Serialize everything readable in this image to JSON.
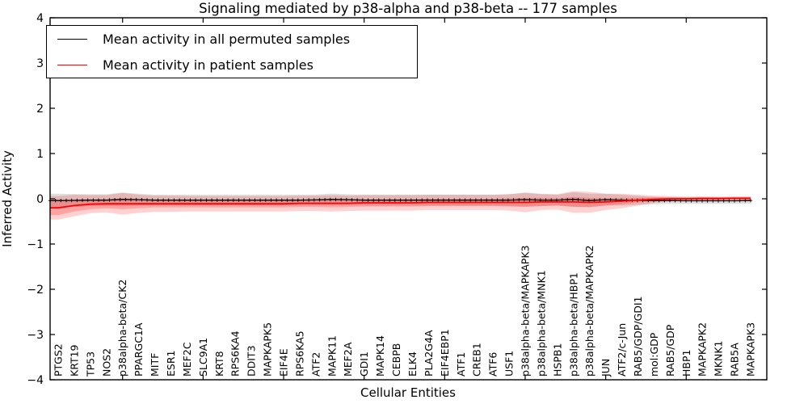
{
  "figure": {
    "background": "#ffffff"
  },
  "chart_data": {
    "type": "line",
    "title": "Signaling mediated by p38-alpha and p38-beta -- 177 samples",
    "xlabel": "Cellular Entities",
    "ylabel": "Inferred Activity",
    "ylim": [
      -4,
      4
    ],
    "ytick_values": [
      4,
      3,
      2,
      1,
      0,
      -1,
      -2,
      -3,
      -4
    ],
    "ytick_labels": [
      "4",
      "3",
      "2",
      "1",
      "0",
      "−1",
      "−2",
      "−3",
      "−4"
    ],
    "x_major_tick_every": 5,
    "grid": false,
    "legend_position": "upper-left",
    "categories": [
      "PTGS2",
      "KRT19",
      "TP53",
      "NOS2",
      "p38alpha-beta/CK2",
      "PPARGC1A",
      "MITF",
      "ESR1",
      "MEF2C",
      "SLC9A1",
      "KRT8",
      "RPS6KA4",
      "DDIT3",
      "MAPKAPK5",
      "EIF4E",
      "RPS6KA5",
      "ATF2",
      "MAPK11",
      "MEF2A",
      "GDI1",
      "MAPK14",
      "CEBPB",
      "ELK4",
      "PLA2G4A",
      "EIF4EBP1",
      "ATF1",
      "CREB1",
      "ATF6",
      "USF1",
      "p38alpha-beta/MAPKAPK3",
      "p38alpha-beta/MNK1",
      "HSPB1",
      "p38alpha-beta/HBP1",
      "p38alpha-beta/MAPKAPK2",
      "JUN",
      "ATF2/c-Jun",
      "RAB5/GDP/GDI1",
      "mol:GDP",
      "RAB5/GDP",
      "HBP1",
      "MAPKAPK2",
      "MKNK1",
      "RAB5A",
      "MAPKAPK3"
    ],
    "series": [
      {
        "name": "Mean activity in all permuted samples",
        "color": "#000000",
        "marker": "+",
        "line_width": 1.3,
        "values": [
          -0.04,
          -0.035,
          -0.03,
          -0.03,
          -0.015,
          -0.02,
          -0.03,
          -0.03,
          -0.03,
          -0.03,
          -0.03,
          -0.03,
          -0.03,
          -0.03,
          -0.03,
          -0.03,
          -0.025,
          -0.015,
          -0.02,
          -0.03,
          -0.03,
          -0.03,
          -0.03,
          -0.03,
          -0.03,
          -0.03,
          -0.03,
          -0.03,
          -0.03,
          -0.02,
          -0.03,
          -0.03,
          -0.015,
          -0.04,
          -0.02,
          -0.03,
          -0.035,
          -0.04,
          -0.04,
          -0.045,
          -0.045,
          -0.045,
          -0.045,
          -0.04
        ]
      },
      {
        "name": "Mean activity in patient samples",
        "color": "#ff0000",
        "marker": "none",
        "line_width": 1.8,
        "values": [
          -0.2,
          -0.15,
          -0.12,
          -0.11,
          -0.11,
          -0.11,
          -0.11,
          -0.11,
          -0.11,
          -0.11,
          -0.11,
          -0.11,
          -0.11,
          -0.11,
          -0.11,
          -0.1,
          -0.1,
          -0.1,
          -0.1,
          -0.09,
          -0.09,
          -0.09,
          -0.09,
          -0.08,
          -0.08,
          -0.08,
          -0.08,
          -0.08,
          -0.08,
          -0.08,
          -0.07,
          -0.07,
          -0.07,
          -0.08,
          -0.07,
          -0.05,
          -0.03,
          -0.01,
          0.0,
          0.0,
          0.005,
          0.005,
          0.01,
          0.01
        ]
      }
    ],
    "bands": [
      {
        "name": "permuted-range",
        "color": "#808080",
        "alpha": 0.25,
        "center_series": 0,
        "half_widths": [
          0.15,
          0.14,
          0.13,
          0.13,
          0.15,
          0.13,
          0.12,
          0.12,
          0.12,
          0.12,
          0.12,
          0.12,
          0.12,
          0.12,
          0.12,
          0.12,
          0.12,
          0.13,
          0.12,
          0.12,
          0.12,
          0.12,
          0.12,
          0.12,
          0.12,
          0.12,
          0.12,
          0.12,
          0.13,
          0.15,
          0.13,
          0.12,
          0.16,
          0.15,
          0.13,
          0.12,
          0.1,
          0.08,
          0.07,
          0.07,
          0.07,
          0.07,
          0.07,
          0.07
        ]
      },
      {
        "name": "patient-outer",
        "color": "#ff0000",
        "alpha": 0.18,
        "center_series": 1,
        "half_widths": [
          0.26,
          0.24,
          0.2,
          0.19,
          0.24,
          0.2,
          0.18,
          0.18,
          0.17,
          0.17,
          0.17,
          0.17,
          0.17,
          0.17,
          0.17,
          0.17,
          0.17,
          0.18,
          0.17,
          0.17,
          0.17,
          0.17,
          0.17,
          0.17,
          0.17,
          0.17,
          0.17,
          0.17,
          0.18,
          0.22,
          0.18,
          0.17,
          0.24,
          0.23,
          0.18,
          0.16,
          0.12,
          0.08,
          0.06,
          0.05,
          0.05,
          0.04,
          0.04,
          0.04
        ]
      },
      {
        "name": "patient-inner",
        "color": "#ff0000",
        "alpha": 0.22,
        "center_series": 1,
        "half_widths": [
          0.16,
          0.13,
          0.11,
          0.1,
          0.12,
          0.1,
          0.08,
          0.08,
          0.08,
          0.08,
          0.08,
          0.08,
          0.08,
          0.08,
          0.08,
          0.08,
          0.08,
          0.09,
          0.08,
          0.08,
          0.08,
          0.08,
          0.08,
          0.08,
          0.08,
          0.08,
          0.08,
          0.08,
          0.09,
          0.1,
          0.09,
          0.08,
          0.11,
          0.1,
          0.08,
          0.07,
          0.05,
          0.04,
          0.03,
          0.03,
          0.03,
          0.03,
          0.03,
          0.03
        ]
      }
    ]
  }
}
